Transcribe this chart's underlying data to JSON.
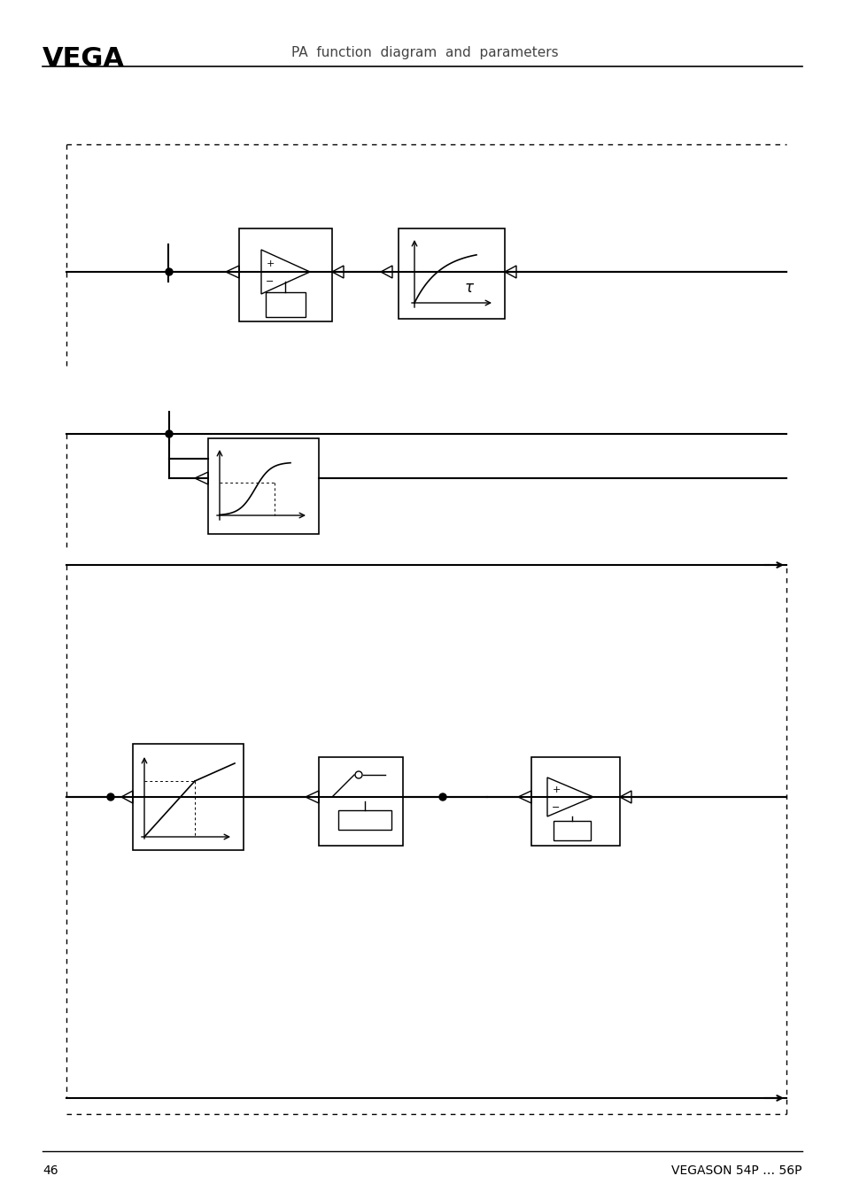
{
  "title": "PA function diagram and parameters",
  "logo_text": "VEGA",
  "page_number": "46",
  "footer_text": "VEGASON 54P … 56P",
  "bg_color": "#ffffff",
  "line_color": "#000000",
  "dashed_color": "#000000"
}
